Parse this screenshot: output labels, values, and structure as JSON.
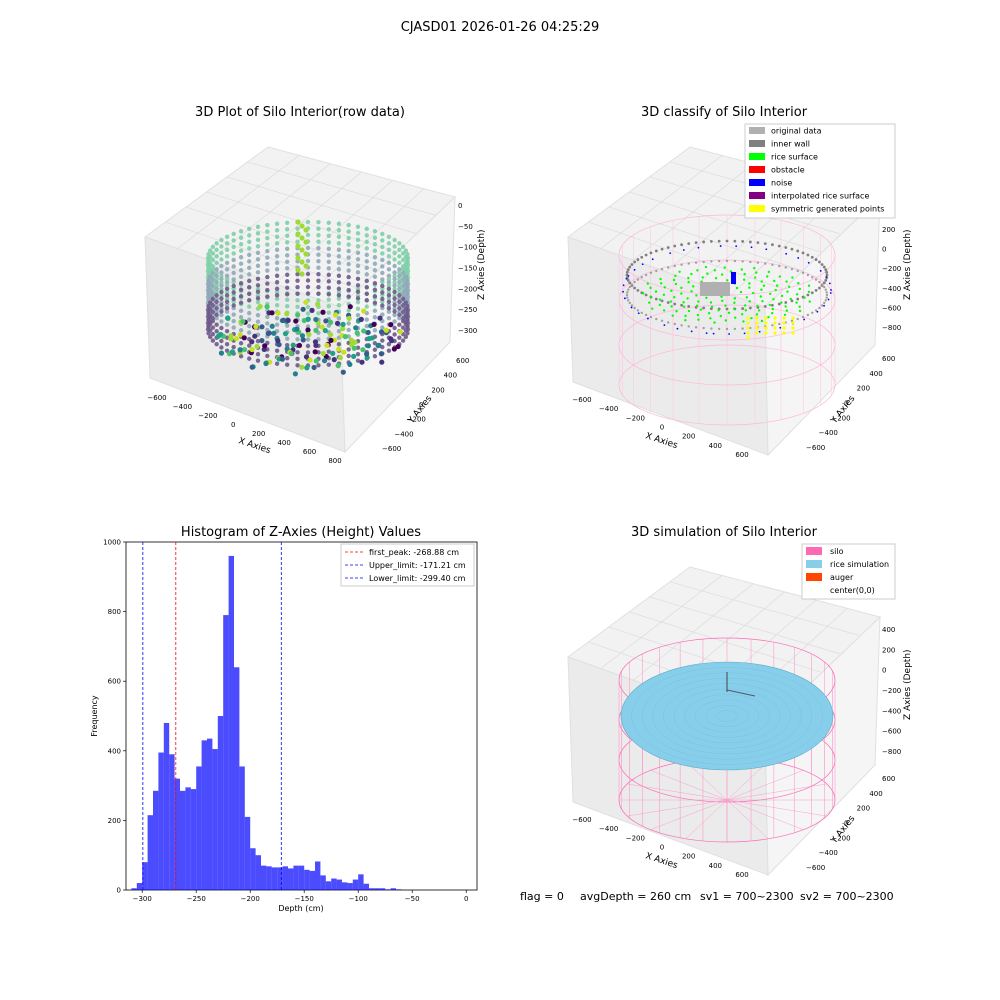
{
  "figure": {
    "suptitle": "CJASD01 2026-01-26 04:25:29",
    "footer": {
      "flag": "flag = 0",
      "avg_depth": "avgDepth = 260 cm",
      "sv1": "sv1 = 700~2300",
      "sv2": "sv2 = 700~2300"
    }
  },
  "chart_data": [
    {
      "type": "scatter3d",
      "title": "3D Plot of Silo Interior(row data)",
      "xlabel": "X Axies",
      "ylabel": "Y Axies",
      "zlabel": "Z Axies (Depth)",
      "x_ticks": [
        "−600",
        "−400",
        "−200",
        "0",
        "200",
        "400",
        "600",
        "800"
      ],
      "y_ticks": [
        "−600",
        "−400",
        "−200",
        "0",
        "200",
        "400",
        "600"
      ],
      "z_ticks": [
        "0",
        "−50",
        "−100",
        "−150",
        "−200",
        "−250",
        "−300"
      ],
      "colormap": "viridis"
    },
    {
      "type": "scatter3d",
      "title": "3D classify of Silo Interior",
      "xlabel": "X Axies",
      "ylabel": "Y Axies",
      "zlabel": "Z Axies (Depth)",
      "x_ticks": [
        "−600",
        "−400",
        "−200",
        "0",
        "200",
        "400",
        "600"
      ],
      "y_ticks": [
        "−600",
        "−400",
        "−200",
        "0",
        "200",
        "400",
        "600"
      ],
      "z_ticks": [
        "200",
        "0",
        "−200",
        "−400",
        "−600",
        "−800"
      ],
      "legend": [
        {
          "label": "original data",
          "color": "#b0b0b0"
        },
        {
          "label": "inner wall",
          "color": "#808080"
        },
        {
          "label": "rice surface",
          "color": "#00ff00"
        },
        {
          "label": "obstacle",
          "color": "#ff0000"
        },
        {
          "label": "noise",
          "color": "#0000ff"
        },
        {
          "label": "interpolated rice surface",
          "color": "#800080"
        },
        {
          "label": "symmetric generated points",
          "color": "#ffff00"
        }
      ],
      "legend_placement": "top-right"
    },
    {
      "type": "bar",
      "title": "Histogram of Z-Axies (Height) Values",
      "xlabel": "Depth (cm)",
      "ylabel": "Frequency",
      "xlim": [
        -315,
        10
      ],
      "ylim": [
        0,
        1000
      ],
      "x_ticks": [
        -300,
        -250,
        -200,
        -150,
        -100,
        -50,
        0
      ],
      "y_ticks": [
        0,
        200,
        400,
        600,
        800,
        1000
      ],
      "bin_start": -310,
      "bin_width": 5,
      "bar_color": "#0000ff",
      "values": [
        5,
        20,
        80,
        215,
        285,
        395,
        480,
        390,
        320,
        285,
        295,
        290,
        355,
        430,
        435,
        405,
        500,
        790,
        960,
        640,
        355,
        210,
        120,
        100,
        70,
        68,
        65,
        65,
        68,
        62,
        70,
        70,
        58,
        55,
        82,
        42,
        25,
        33,
        30,
        22,
        20,
        30,
        45,
        18,
        5,
        5,
        5,
        2,
        5,
        2
      ],
      "lines": [
        {
          "label": "first_peak: -268.88 cm",
          "x": -268.88,
          "color": "#ff0000"
        },
        {
          "label": "Upper_limit: -171.21 cm",
          "x": -171.21,
          "color": "#0000ff"
        },
        {
          "label": "Lower_limit: -299.40 cm",
          "x": -299.4,
          "color": "#0000ff"
        }
      ],
      "tick_labels": [
        "−300",
        "−250",
        "−200",
        "−150",
        "−100",
        "−50",
        "0"
      ],
      "legend_placement": "top-right"
    },
    {
      "type": "surface3d",
      "title": "3D simulation of Silo Interior",
      "xlabel": "X Axies",
      "ylabel": "Y Axies",
      "zlabel": "Z Axies (Depth)",
      "x_ticks": [
        "−600",
        "−400",
        "−200",
        "0",
        "200",
        "400",
        "600"
      ],
      "y_ticks": [
        "−600",
        "−400",
        "−200",
        "0",
        "200",
        "400",
        "600"
      ],
      "z_ticks": [
        "400",
        "200",
        "0",
        "−200",
        "−400",
        "−600",
        "−800"
      ],
      "legend": [
        {
          "label": "silo",
          "color": "#ff69b4"
        },
        {
          "label": "rice simulation",
          "color": "#87ceeb"
        },
        {
          "label": "auger",
          "color": "#ff4500"
        },
        {
          "label": "center(0,0)",
          "color": "#ffffff"
        }
      ],
      "legend_placement": "top-right"
    }
  ]
}
